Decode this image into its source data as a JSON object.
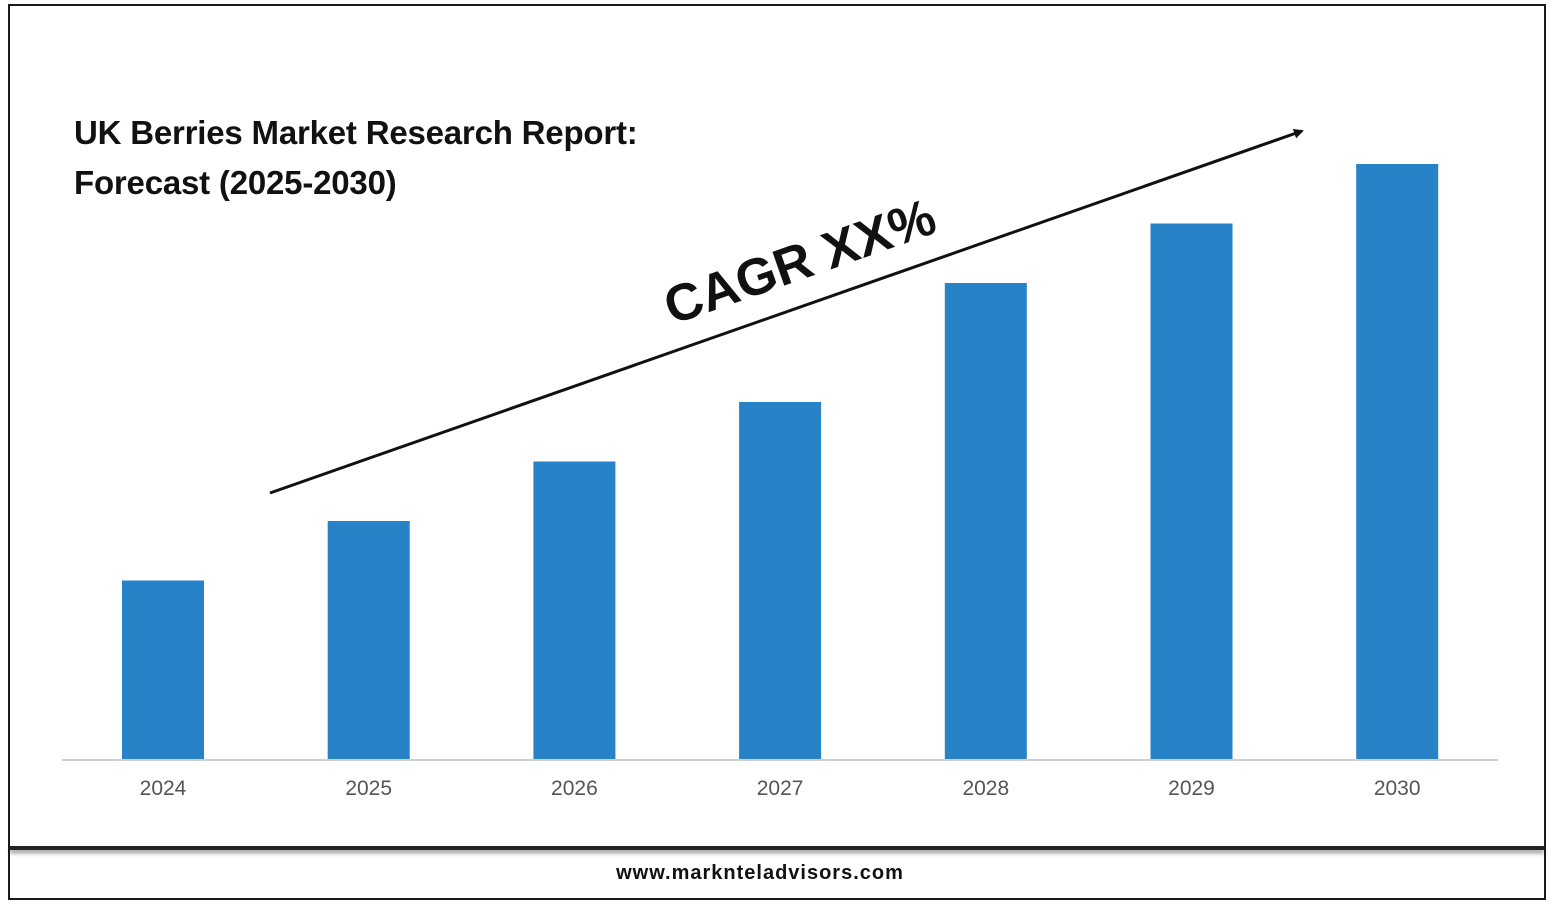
{
  "chart_data": {
    "type": "bar",
    "title_lines": [
      "UK Berries Market Research Report:",
      "Forecast (2025-2030)"
    ],
    "categories": [
      "2024",
      "2025",
      "2026",
      "2027",
      "2028",
      "2029",
      "2030"
    ],
    "values": [
      30,
      40,
      50,
      60,
      80,
      90,
      100
    ],
    "ylim": [
      0,
      100
    ],
    "bar_color": "#2882c8",
    "annotation": "CAGR XX%",
    "grid": false,
    "legend": "none"
  },
  "footer": {
    "url": "www.marknteladvisors.com"
  }
}
